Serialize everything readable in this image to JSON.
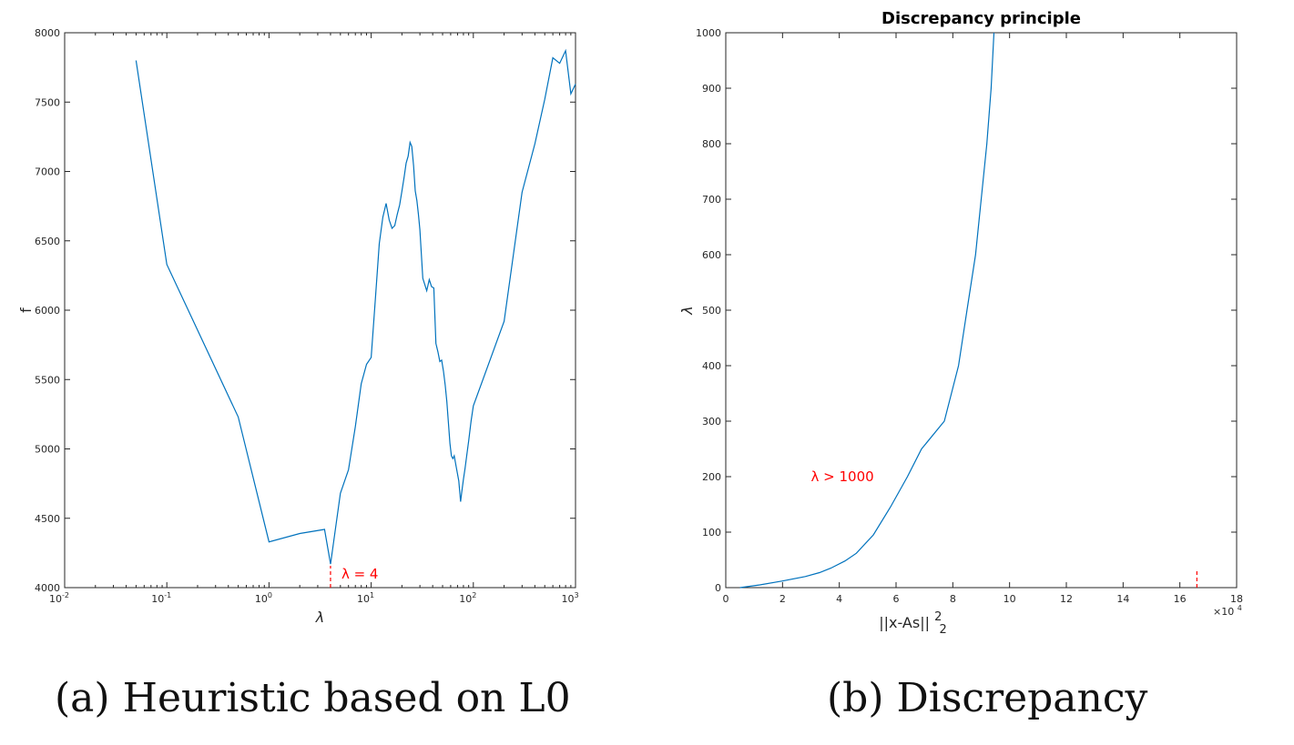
{
  "chart_data": [
    {
      "type": "line",
      "title": "",
      "xlabel": "λ",
      "ylabel": "f",
      "xscale": "log",
      "xlim": [
        0.01,
        1000
      ],
      "ylim": [
        4000,
        8000
      ],
      "xticks": [
        0.01,
        0.1,
        1,
        10,
        100,
        1000
      ],
      "xtick_labels": [
        {
          "base": "10",
          "exp": "-2"
        },
        {
          "base": "10",
          "exp": "-1"
        },
        {
          "base": "10",
          "exp": "0"
        },
        {
          "base": "10",
          "exp": "1"
        },
        {
          "base": "10",
          "exp": "2"
        },
        {
          "base": "10",
          "exp": "3"
        }
      ],
      "yticks": [
        4000,
        4500,
        5000,
        5500,
        6000,
        6500,
        7000,
        7500,
        8000
      ],
      "ytick_labels": [
        "4000",
        "4500",
        "5000",
        "5500",
        "6000",
        "6500",
        "7000",
        "7500",
        "8000"
      ],
      "grid": false,
      "series": [
        {
          "color": "#0072bd",
          "x": [
            0.05,
            0.1,
            0.5,
            1,
            2,
            3.5,
            4,
            5,
            6,
            7,
            8,
            9,
            10,
            11,
            12,
            13,
            14,
            15,
            16,
            17,
            18,
            19,
            20,
            21,
            22,
            23,
            24,
            25,
            26,
            27,
            28,
            29,
            30,
            32,
            35,
            37,
            39,
            41,
            43,
            45,
            47,
            49,
            51,
            53,
            55,
            57,
            59,
            61,
            63,
            65,
            68,
            72,
            75,
            77,
            80,
            83,
            86,
            90,
            95,
            100,
            200,
            300,
            400,
            500,
            600,
            700,
            800,
            900,
            1000
          ],
          "y": [
            7800,
            6330,
            5230,
            4330,
            4390,
            4420,
            4170,
            4680,
            4850,
            5160,
            5470,
            5610,
            5660,
            6080,
            6480,
            6670,
            6770,
            6650,
            6590,
            6610,
            6690,
            6760,
            6860,
            6960,
            7060,
            7110,
            7210,
            7180,
            7040,
            6860,
            6790,
            6690,
            6580,
            6230,
            6140,
            6220,
            6170,
            6160,
            5760,
            5700,
            5630,
            5640,
            5560,
            5460,
            5340,
            5190,
            5040,
            4950,
            4930,
            4950,
            4870,
            4770,
            4620,
            4690,
            4780,
            4860,
            4950,
            5060,
            5200,
            5310,
            5920,
            6850,
            7200,
            7520,
            7820,
            7780,
            7870,
            7560,
            7630
          ]
        }
      ],
      "annotations": [
        {
          "text": "λ = 4",
          "x": 4,
          "color": "#ff0000",
          "marker": "dashed vertical tick at x = 4"
        }
      ]
    },
    {
      "type": "line",
      "title": "Discrepancy principle",
      "xlabel": "||x-As||",
      "xlabel_sup": "2",
      "xlabel_sub": "2",
      "ylabel": "λ",
      "xlim": [
        0,
        18
      ],
      "ylim": [
        0,
        1000
      ],
      "x_multiplier": "×10",
      "x_multiplier_exp": "4",
      "xticks": [
        0,
        2,
        4,
        6,
        8,
        10,
        12,
        14,
        16,
        18
      ],
      "xtick_labels": [
        "0",
        "2",
        "4",
        "6",
        "8",
        "10",
        "12",
        "14",
        "16",
        "18"
      ],
      "yticks": [
        0,
        100,
        200,
        300,
        400,
        500,
        600,
        700,
        800,
        900,
        1000
      ],
      "ytick_labels": [
        "0",
        "100",
        "200",
        "300",
        "400",
        "500",
        "600",
        "700",
        "800",
        "900",
        "1000"
      ],
      "grid": false,
      "series": [
        {
          "color": "#0072bd",
          "x": [
            0.5,
            1.2,
            2.0,
            2.8,
            3.3,
            3.7,
            4.2,
            4.6,
            5.2,
            5.8,
            6.4,
            6.9,
            7.7,
            8.2,
            8.5,
            8.8,
            9.0,
            9.2,
            9.35,
            9.45
          ],
          "y": [
            0,
            5,
            12,
            20,
            27,
            35,
            48,
            62,
            95,
            145,
            200,
            250,
            300,
            400,
            500,
            600,
            700,
            800,
            900,
            1000
          ]
        }
      ],
      "annotations": [
        {
          "text": "λ > 1000",
          "x": 3,
          "y": 200,
          "color": "#ff0000"
        },
        {
          "text": "",
          "x": 16.6,
          "color": "#ff0000",
          "marker": "dashed vertical tick at x = 16.6"
        }
      ]
    }
  ],
  "captions": [
    {
      "label": "(a)",
      "text": "Heuristic based on L0"
    },
    {
      "label": "(b)",
      "text": "Discrepancy"
    }
  ]
}
